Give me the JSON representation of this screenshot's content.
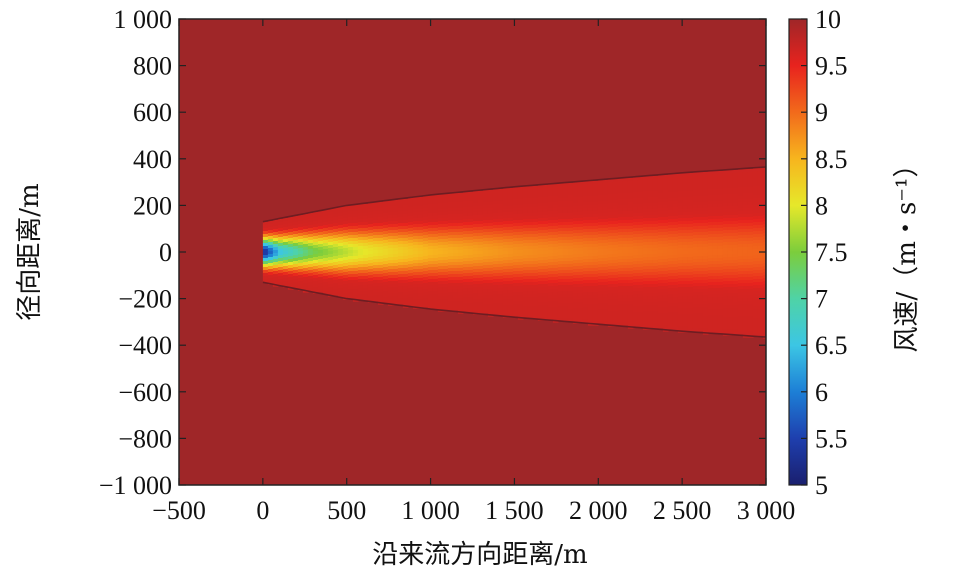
{
  "chart_data": {
    "type": "heatmap",
    "title": "",
    "xlabel": "沿来流方向距离/m",
    "ylabel": "径向距离/m",
    "colorbar_label": "风速/（m・s⁻¹）",
    "xlim": [
      -500,
      3000
    ],
    "ylim": [
      -1000,
      1000
    ],
    "clim": [
      5,
      10
    ],
    "x_ticks": [
      -500,
      0,
      500,
      1000,
      1500,
      2000,
      2500,
      3000
    ],
    "x_tick_labels": [
      "−500",
      "0",
      "500",
      "1 000",
      "1 500",
      "2 000",
      "2 500",
      "3 000"
    ],
    "y_ticks": [
      1000,
      800,
      600,
      400,
      200,
      0,
      -200,
      -400,
      -600,
      -800,
      -1000
    ],
    "y_tick_labels": [
      "1 000",
      "800",
      "600",
      "400",
      "200",
      "0",
      "−200",
      "−400",
      "−600",
      "−800",
      "−1 000"
    ],
    "colorbar_ticks": [
      10,
      9.5,
      9,
      8.5,
      8,
      7.5,
      7,
      6.5,
      6,
      5.5,
      5
    ],
    "colorbar_tick_labels": [
      "10",
      "9.5",
      "9",
      "8.5",
      "8",
      "7.5",
      "7",
      "6.5",
      "6",
      "5.5",
      "5"
    ],
    "colormap": "jet",
    "colormap_stops": [
      "#1a1f6e",
      "#1e3fae",
      "#1d7fd6",
      "#3cc6e4",
      "#4fd3a6",
      "#7ccd3c",
      "#e6e82a",
      "#f7b51e",
      "#f26a1b",
      "#e8231e",
      "#9f2628"
    ],
    "ambient_value": 10,
    "wake": {
      "rotor_x": 0,
      "min_velocity": 5.2,
      "outer_boundary": [
        {
          "x": 0,
          "y": 130
        },
        {
          "x": 500,
          "y": 200
        },
        {
          "x": 1000,
          "y": 245
        },
        {
          "x": 1500,
          "y": 280
        },
        {
          "x": 2000,
          "y": 310
        },
        {
          "x": 2500,
          "y": 340
        },
        {
          "x": 3000,
          "y": 365
        }
      ],
      "centerline_velocity": [
        {
          "x": 0,
          "v": 5.2
        },
        {
          "x": 100,
          "v": 6.5
        },
        {
          "x": 300,
          "v": 7.4
        },
        {
          "x": 600,
          "v": 8.0
        },
        {
          "x": 1000,
          "v": 8.5
        },
        {
          "x": 1500,
          "v": 8.75
        },
        {
          "x": 2000,
          "v": 8.9
        },
        {
          "x": 2500,
          "v": 9.0
        },
        {
          "x": 3000,
          "v": 9.05
        }
      ]
    }
  }
}
